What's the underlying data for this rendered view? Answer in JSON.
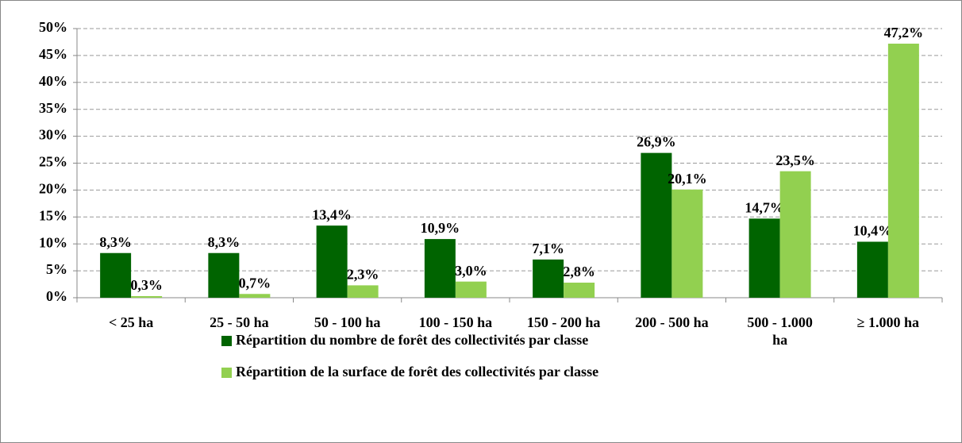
{
  "chart_data": {
    "type": "bar",
    "categories": [
      "< 25 ha",
      "25 - 50 ha",
      "50 - 100 ha",
      "100 - 150 ha",
      "150 - 200 ha",
      "200 - 500 ha",
      "500 - 1.000 ha",
      "≥ 1.000 ha"
    ],
    "series": [
      {
        "name": "Répartition du nombre de forêt des collectivités par classe",
        "color": "#006400",
        "values": [
          8.3,
          8.3,
          13.4,
          10.9,
          7.1,
          26.9,
          14.7,
          10.4
        ],
        "value_labels": [
          "8,3%",
          "8,3%",
          "13,4%",
          "10,9%",
          "7,1%",
          "26,9%",
          "14,7%",
          "10,4%"
        ]
      },
      {
        "name": "Répartition de la surface de forêt des collectivités par classe",
        "color": "#92d050",
        "values": [
          0.3,
          0.7,
          2.3,
          3.0,
          2.8,
          20.1,
          23.5,
          47.2
        ],
        "value_labels": [
          "0,3%",
          "0,7%",
          "2,3%",
          "3,0%",
          "2,8%",
          "20,1%",
          "23,5%",
          "47,2%"
        ]
      }
    ],
    "ylim": [
      0,
      50
    ],
    "yticks": [
      {
        "value": 0,
        "label": "0%"
      },
      {
        "value": 5,
        "label": "5%"
      },
      {
        "value": 10,
        "label": "10%"
      },
      {
        "value": 15,
        "label": "15%"
      },
      {
        "value": 20,
        "label": "20%"
      },
      {
        "value": 25,
        "label": "25%"
      },
      {
        "value": 30,
        "label": "30%"
      },
      {
        "value": 35,
        "label": "35%"
      },
      {
        "value": 40,
        "label": "40%"
      },
      {
        "value": 45,
        "label": "45%"
      },
      {
        "value": 50,
        "label": "50%"
      }
    ],
    "grid": true,
    "legend": "bottom"
  }
}
